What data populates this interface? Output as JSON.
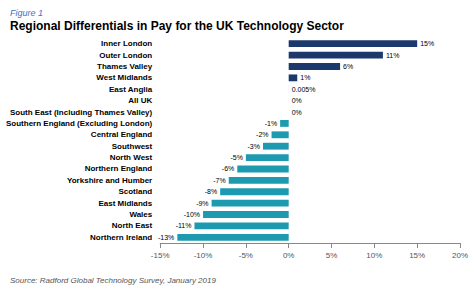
{
  "chart_data": {
    "type": "bar",
    "orientation": "horizontal",
    "title": "Regional Differentials in Pay for the UK Technology Sector",
    "figure_label": "Figure 1",
    "source": "Source: Radford Global Technology Survey, January 2019",
    "categories": [
      "Inner London",
      "Outer London",
      "Thames Valley",
      "West Midlands",
      "East Anglia",
      "All UK",
      "South East (Including Thames Valley)",
      "Southern England (Excluding London)",
      "Central England",
      "Southwest",
      "North West",
      "Northern England",
      "Yorkshire and Humber",
      "Scotland",
      "East Midlands",
      "Wales",
      "North East",
      "Northern Ireland"
    ],
    "values": [
      15,
      11,
      6,
      1,
      0.005,
      0,
      0,
      -1,
      -2,
      -3,
      -5,
      -6,
      -7,
      -8,
      -9,
      -10,
      -11,
      -13
    ],
    "value_labels": [
      "15%",
      "11%",
      "6%",
      "1%",
      "0.005%",
      "0%",
      "0%",
      "-1%",
      "-2%",
      "-3%",
      "-5%",
      "-6%",
      "-7%",
      "-8%",
      "-9%",
      "-10%",
      "-11%",
      "-13%"
    ],
    "colors": [
      "#1b3a6b",
      "#1b3a6b",
      "#1b3a6b",
      "#1b3a6b",
      "#1b3a6b",
      "#1b3a6b",
      "#1b3a6b",
      "#1e9ab0",
      "#1e9ab0",
      "#1e9ab0",
      "#1e9ab0",
      "#1e9ab0",
      "#1e9ab0",
      "#1e9ab0",
      "#1e9ab0",
      "#1e9ab0",
      "#1e9ab0",
      "#1e9ab0"
    ],
    "xlim": [
      -15,
      20
    ],
    "xticks": [
      {
        "value": -15,
        "label": "-15%"
      },
      {
        "value": -10,
        "label": "-10%"
      },
      {
        "value": -5,
        "label": "-5%"
      },
      {
        "value": 0,
        "label": "0%"
      },
      {
        "value": 5,
        "label": "5%"
      },
      {
        "value": 10,
        "label": "10%"
      },
      {
        "value": 15,
        "label": "15%"
      },
      {
        "value": 20,
        "label": "20%"
      }
    ],
    "data_labels": true,
    "grid": false
  }
}
